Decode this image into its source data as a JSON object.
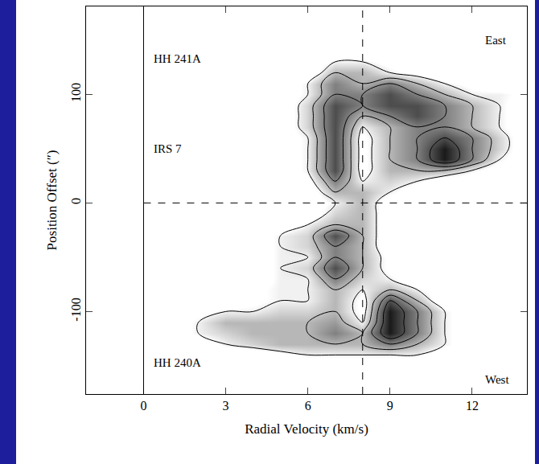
{
  "chart_data": {
    "type": "contour",
    "x_label": "Radial Velocity (km/s)",
    "y_label": "Position Offset (″)",
    "xlim": [
      -2.1,
      14
    ],
    "ylim": [
      -176,
      181
    ],
    "xticks": [
      0,
      3,
      6,
      9,
      12
    ],
    "yticks": [
      -100,
      0,
      100
    ],
    "reference_lines": {
      "x": 8,
      "y": 0
    },
    "separator_x": 0,
    "annotations": [
      {
        "text": "HH 241A",
        "x": 0.3,
        "y": 133
      },
      {
        "text": "IRS 7",
        "x": 0.3,
        "y": 50
      },
      {
        "text": "HH 240A",
        "x": 0.3,
        "y": -147
      },
      {
        "text": "East",
        "x": 12.4,
        "y": 150
      },
      {
        "text": "West",
        "x": 12.4,
        "y": -163
      }
    ],
    "x": [
      1,
      2,
      3,
      4,
      5,
      6,
      7,
      8,
      9,
      10,
      11,
      12,
      13,
      14
    ],
    "y": [
      -150,
      -140,
      -130,
      -120,
      -110,
      -100,
      -90,
      -80,
      -70,
      -60,
      -50,
      -40,
      -30,
      -20,
      -10,
      0,
      10,
      20,
      30,
      40,
      50,
      60,
      70,
      80,
      90,
      100,
      110,
      120,
      130,
      140
    ],
    "z": [
      [
        0,
        0,
        0,
        0,
        0,
        0,
        0,
        0,
        0,
        0,
        0,
        0,
        0,
        0
      ],
      [
        0,
        0,
        0,
        0,
        0.5,
        1,
        1,
        1,
        1,
        1,
        0,
        0,
        0,
        0
      ],
      [
        0,
        0,
        1,
        1.5,
        2,
        2,
        2,
        2,
        3,
        2,
        1,
        0,
        0,
        0
      ],
      [
        0,
        1,
        1.5,
        2,
        2,
        2,
        3,
        2,
        5,
        3,
        1,
        0,
        0,
        0
      ],
      [
        0,
        1,
        2,
        2,
        2,
        2,
        2.5,
        1,
        5,
        3,
        1,
        0,
        0,
        0
      ],
      [
        0,
        0.5,
        1,
        1,
        1.5,
        1.5,
        2,
        0.5,
        5,
        3,
        1,
        0,
        0,
        0
      ],
      [
        0,
        0,
        0,
        0.5,
        1,
        1,
        2,
        0.5,
        4,
        2,
        0,
        0,
        0,
        0
      ],
      [
        0,
        0,
        0,
        0.5,
        1,
        1,
        2,
        1,
        2,
        1,
        0,
        0,
        0,
        0
      ],
      [
        0,
        0,
        0,
        0,
        1,
        1,
        3,
        1.5,
        1,
        0,
        0,
        0,
        0,
        0
      ],
      [
        0,
        0,
        0,
        0,
        1,
        1.5,
        4,
        2,
        0.5,
        0,
        0,
        0,
        0,
        0
      ],
      [
        0,
        0,
        0,
        0,
        1,
        1,
        3,
        2,
        0.5,
        0,
        0,
        0,
        0,
        0
      ],
      [
        0,
        0,
        0,
        0,
        1,
        1.5,
        3,
        2,
        0,
        0,
        0,
        0,
        0,
        0
      ],
      [
        0,
        0,
        0,
        0,
        1,
        1.5,
        4,
        2,
        0,
        0,
        0,
        0,
        0,
        0
      ],
      [
        0,
        0,
        0,
        0,
        0,
        1,
        2,
        2,
        0,
        0,
        0,
        0,
        0,
        0
      ],
      [
        0,
        0,
        0,
        0,
        0,
        0,
        1.5,
        2,
        0,
        0,
        0,
        0,
        0,
        0
      ],
      [
        0,
        0,
        0,
        0,
        0,
        0,
        1,
        2,
        0,
        0,
        0,
        0,
        0,
        0
      ],
      [
        0,
        0,
        0,
        0,
        0,
        0,
        2,
        2,
        1,
        0,
        0,
        0,
        0,
        0
      ],
      [
        0,
        0,
        0,
        0,
        0,
        0.5,
        3,
        1,
        1.5,
        1,
        0,
        0,
        0,
        0
      ],
      [
        0,
        0,
        0,
        0,
        0,
        1,
        4,
        0.5,
        2,
        2,
        2,
        1,
        0,
        0
      ],
      [
        0,
        0,
        0,
        0,
        0,
        1,
        4,
        0.5,
        2,
        3,
        5,
        3,
        1,
        0
      ],
      [
        0,
        0,
        0,
        0,
        0,
        1,
        4,
        0.5,
        2,
        3,
        5,
        3,
        1.5,
        0
      ],
      [
        0,
        0,
        0,
        0,
        0,
        1,
        4,
        0.5,
        2,
        3,
        4,
        3,
        1.5,
        0
      ],
      [
        0,
        0,
        0,
        0,
        0,
        1.5,
        4,
        1,
        2,
        3,
        3,
        2,
        1,
        0
      ],
      [
        0,
        0,
        0,
        0,
        0,
        1.5,
        4,
        2,
        3,
        4,
        3,
        2,
        1,
        0
      ],
      [
        0,
        0,
        0,
        0,
        0,
        1.5,
        4,
        3,
        4,
        4,
        3,
        2,
        1,
        0
      ],
      [
        0,
        0,
        0,
        0,
        0,
        1,
        3,
        3,
        4,
        3,
        2,
        1,
        1,
        0.5
      ],
      [
        0,
        0,
        0,
        0,
        0,
        1,
        3,
        2,
        3,
        2,
        1,
        0.5,
        0,
        0
      ],
      [
        0,
        0,
        0,
        0,
        0,
        0,
        2,
        2,
        1,
        0.5,
        0,
        0,
        0,
        0
      ],
      [
        0,
        0,
        0,
        0,
        0,
        0,
        1,
        1,
        0.5,
        0,
        0,
        0,
        0,
        0
      ],
      [
        0,
        0,
        0,
        0,
        0,
        0,
        0,
        0,
        0,
        0,
        0,
        0,
        0,
        0
      ]
    ],
    "zlim": [
      0,
      5
    ],
    "contour_levels": [
      1,
      2,
      3,
      4,
      5
    ],
    "grid": false,
    "legend": false
  }
}
